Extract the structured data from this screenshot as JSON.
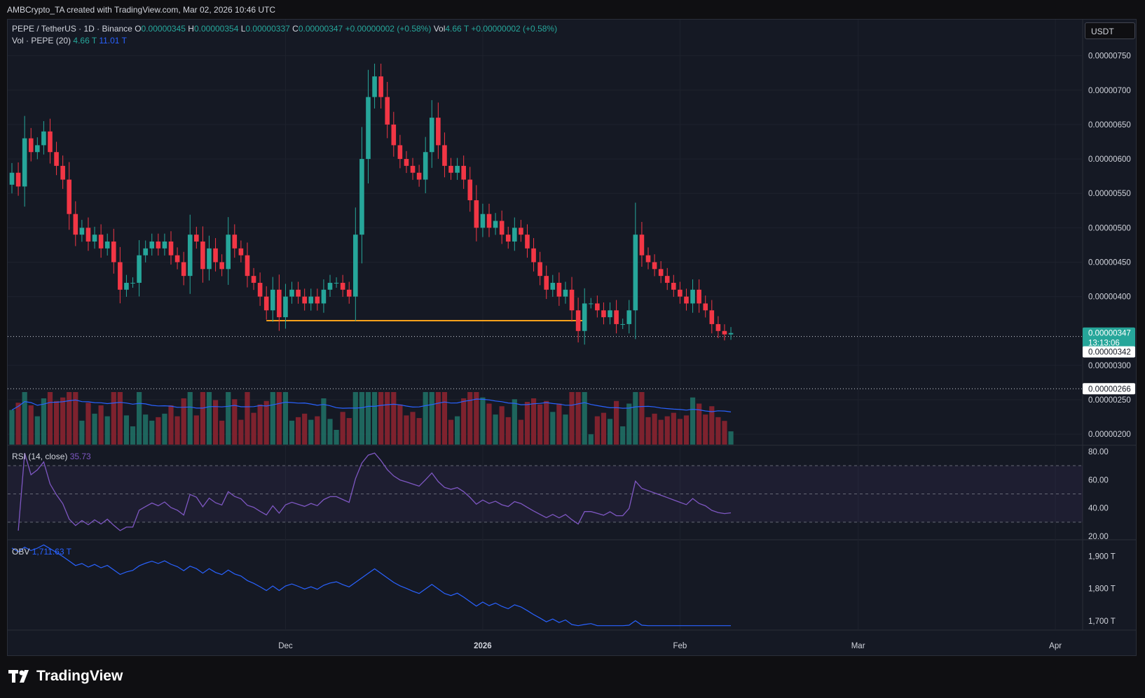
{
  "header": {
    "credit": "AMBCrypto_TA created with TradingView.com, Mar 02, 2026 10:46 UTC"
  },
  "currency_button": "USDT",
  "legend": {
    "symbol": "PEPE / TetherUS · 1D · Binance",
    "o_label": "O",
    "o": "0.00000345",
    "h_label": "H",
    "h": "0.00000354",
    "l_label": "L",
    "l": "0.00000337",
    "c_label": "C",
    "c": "0.00000347",
    "change": "+0.00000002 (+0.58%)",
    "vol_label": "Vol",
    "vol": "4.66 T",
    "vol_change": "+0.00000002 (+0.58%)",
    "vol_study": "Vol · PEPE (20)",
    "vol_value": "4.66 T",
    "vol_ma": "11.01 T",
    "rsi_study": "RSI (14, close)",
    "rsi_value": "35.73",
    "obv_study": "OBV",
    "obv_value": "1,711.63 T"
  },
  "price_tags": {
    "last": "0.00000347",
    "countdown": "13:13:06",
    "line_a": "0.00000342",
    "line_b": "0.00000266"
  },
  "branding": {
    "name": "TradingView"
  },
  "colors": {
    "up": "#26a69a",
    "down": "#f23645",
    "volume_ma": "#2962ff",
    "rsi": "#7e57c2",
    "obv": "#2962ff",
    "support": "#f7a21b"
  },
  "chart_data": [
    {
      "type": "candlestick",
      "y_ticks": [
        "0.00000750",
        "0.00000700",
        "0.00000650",
        "0.00000600",
        "0.00000550",
        "0.00000500",
        "0.00000450",
        "0.00000400",
        "0.00000300",
        "0.00000250",
        "0.00000200"
      ],
      "ylim": [
        1.9e-06,
        7.7e-06
      ],
      "x_ticks": [
        {
          "label": "Dec",
          "index": 43
        },
        {
          "label": "2026",
          "index": 74
        },
        {
          "label": "Feb",
          "index": 105
        },
        {
          "label": "Mar",
          "index": 133
        },
        {
          "label": "Apr",
          "index": 164
        }
      ],
      "support_level": 3.65e-06,
      "horizontal_lines": [
        3.42e-06,
        2.66e-06
      ],
      "closes": [
        5.8,
        5.6,
        6.3,
        6.1,
        6.2,
        6.4,
        6.1,
        5.9,
        5.7,
        5.2,
        4.9,
        5.0,
        4.8,
        4.9,
        4.7,
        4.8,
        4.5,
        4.1,
        4.2,
        4.2,
        4.6,
        4.7,
        4.8,
        4.7,
        4.8,
        4.6,
        4.5,
        4.3,
        4.9,
        4.8,
        4.4,
        4.7,
        4.5,
        4.4,
        4.9,
        4.7,
        4.6,
        4.3,
        4.2,
        4.0,
        3.8,
        4.1,
        3.7,
        4.0,
        4.1,
        4.0,
        3.9,
        4.0,
        3.9,
        4.1,
        4.2,
        4.2,
        4.1,
        4.0,
        4.9,
        6.0,
        6.9,
        7.2,
        6.9,
        6.5,
        6.2,
        6.0,
        5.9,
        5.8,
        5.7,
        6.1,
        6.6,
        6.2,
        5.9,
        5.8,
        5.9,
        5.7,
        5.4,
        5.0,
        5.2,
        5.0,
        5.1,
        4.9,
        4.8,
        5.0,
        4.9,
        4.7,
        4.5,
        4.3,
        4.1,
        4.2,
        4.0,
        4.1,
        3.8,
        3.5,
        3.9,
        3.9,
        3.8,
        3.7,
        3.8,
        3.6,
        3.6,
        3.8,
        4.9,
        4.6,
        4.5,
        4.4,
        4.3,
        4.2,
        4.1,
        4.0,
        3.9,
        4.1,
        3.9,
        3.8,
        3.6,
        3.5,
        3.45,
        3.47
      ],
      "rsi": {
        "ticks": [
          "80.00",
          "60.00",
          "40.00",
          "20.00"
        ],
        "levels": [
          70,
          50,
          30
        ],
        "ylim": [
          20,
          80
        ]
      },
      "obv": {
        "ticks": [
          "1,900 T",
          "1,800 T",
          "1,700 T"
        ],
        "ylim": [
          1680,
          1940
        ]
      }
    }
  ]
}
